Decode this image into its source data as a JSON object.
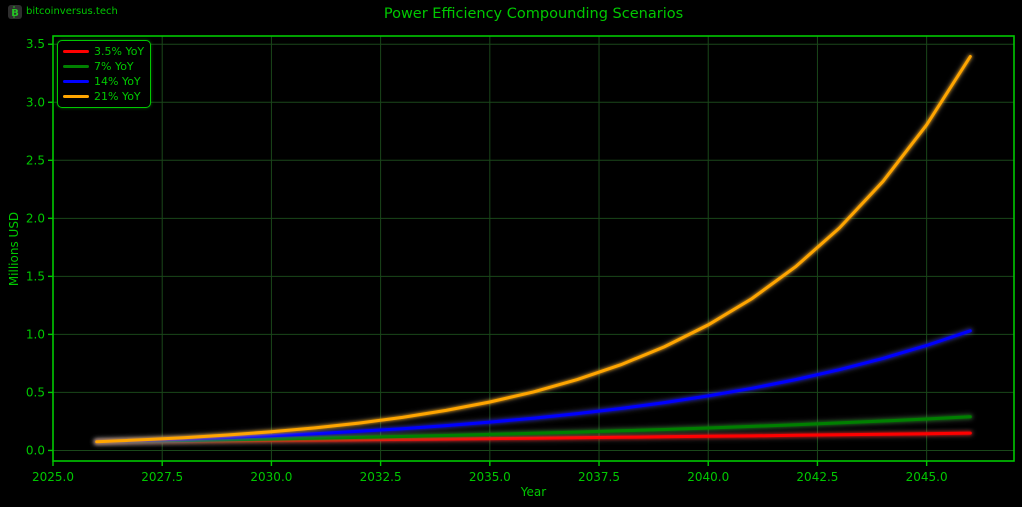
{
  "watermark": {
    "icon": "bitcoin-icon",
    "icon_letter": "B",
    "text": "bitcoinversus.tech"
  },
  "chart_data": {
    "type": "line",
    "title": "Power Efficiency Compounding Scenarios",
    "xlabel": "Year",
    "ylabel": "Millions USD",
    "x": [
      2026,
      2027,
      2028,
      2029,
      2030,
      2031,
      2032,
      2033,
      2034,
      2035,
      2036,
      2037,
      2038,
      2039,
      2040,
      2041,
      2042,
      2043,
      2044,
      2045,
      2046
    ],
    "series": [
      {
        "name": "3.5% YoY",
        "rate_percent": 3.5,
        "color": "#ff0000",
        "values": [
          0.075,
          0.0776,
          0.0803,
          0.0832,
          0.0861,
          0.0891,
          0.0922,
          0.0954,
          0.0988,
          0.1022,
          0.1058,
          0.1095,
          0.1133,
          0.1173,
          0.1214,
          0.1257,
          0.1301,
          0.1346,
          0.1393,
          0.1442,
          0.1492
        ]
      },
      {
        "name": "7% YoY",
        "rate_percent": 7,
        "color": "#008000",
        "values": [
          0.075,
          0.0803,
          0.0859,
          0.0919,
          0.0983,
          0.1052,
          0.1126,
          0.1204,
          0.1289,
          0.1379,
          0.1475,
          0.1579,
          0.1689,
          0.1807,
          0.1934,
          0.2069,
          0.2214,
          0.2369,
          0.2535,
          0.2712,
          0.2902
        ]
      },
      {
        "name": "14% YoY",
        "rate_percent": 14,
        "color": "#0000ff",
        "values": [
          0.075,
          0.0855,
          0.0975,
          0.1111,
          0.1267,
          0.1444,
          0.1646,
          0.1877,
          0.2139,
          0.2439,
          0.278,
          0.317,
          0.3613,
          0.4119,
          0.4696,
          0.5353,
          0.6103,
          0.6957,
          0.7931,
          0.9042,
          1.0308
        ]
      },
      {
        "name": "21% YoY",
        "rate_percent": 21,
        "color": "#ffa500",
        "values": [
          0.075,
          0.0908,
          0.1098,
          0.1329,
          0.1608,
          0.1945,
          0.2354,
          0.2848,
          0.3446,
          0.417,
          0.5046,
          0.6105,
          0.7387,
          0.8939,
          1.0816,
          1.3087,
          1.5835,
          1.9161,
          2.3185,
          2.8053,
          3.3944
        ]
      }
    ],
    "xlim": [
      2025,
      2047
    ],
    "ylim": [
      -0.091,
      3.571
    ],
    "x_ticks": [
      2025.0,
      2027.5,
      2030.0,
      2032.5,
      2035.0,
      2037.5,
      2040.0,
      2042.5,
      2045.0
    ],
    "y_ticks": [
      0.0,
      0.5,
      1.0,
      1.5,
      2.0,
      2.5,
      3.0,
      3.5
    ],
    "grid": true,
    "legend_position": "upper-left",
    "colors": {
      "background": "#000000",
      "text": "#00c800",
      "spine": "#00c800",
      "grid": "#1a471a"
    }
  }
}
